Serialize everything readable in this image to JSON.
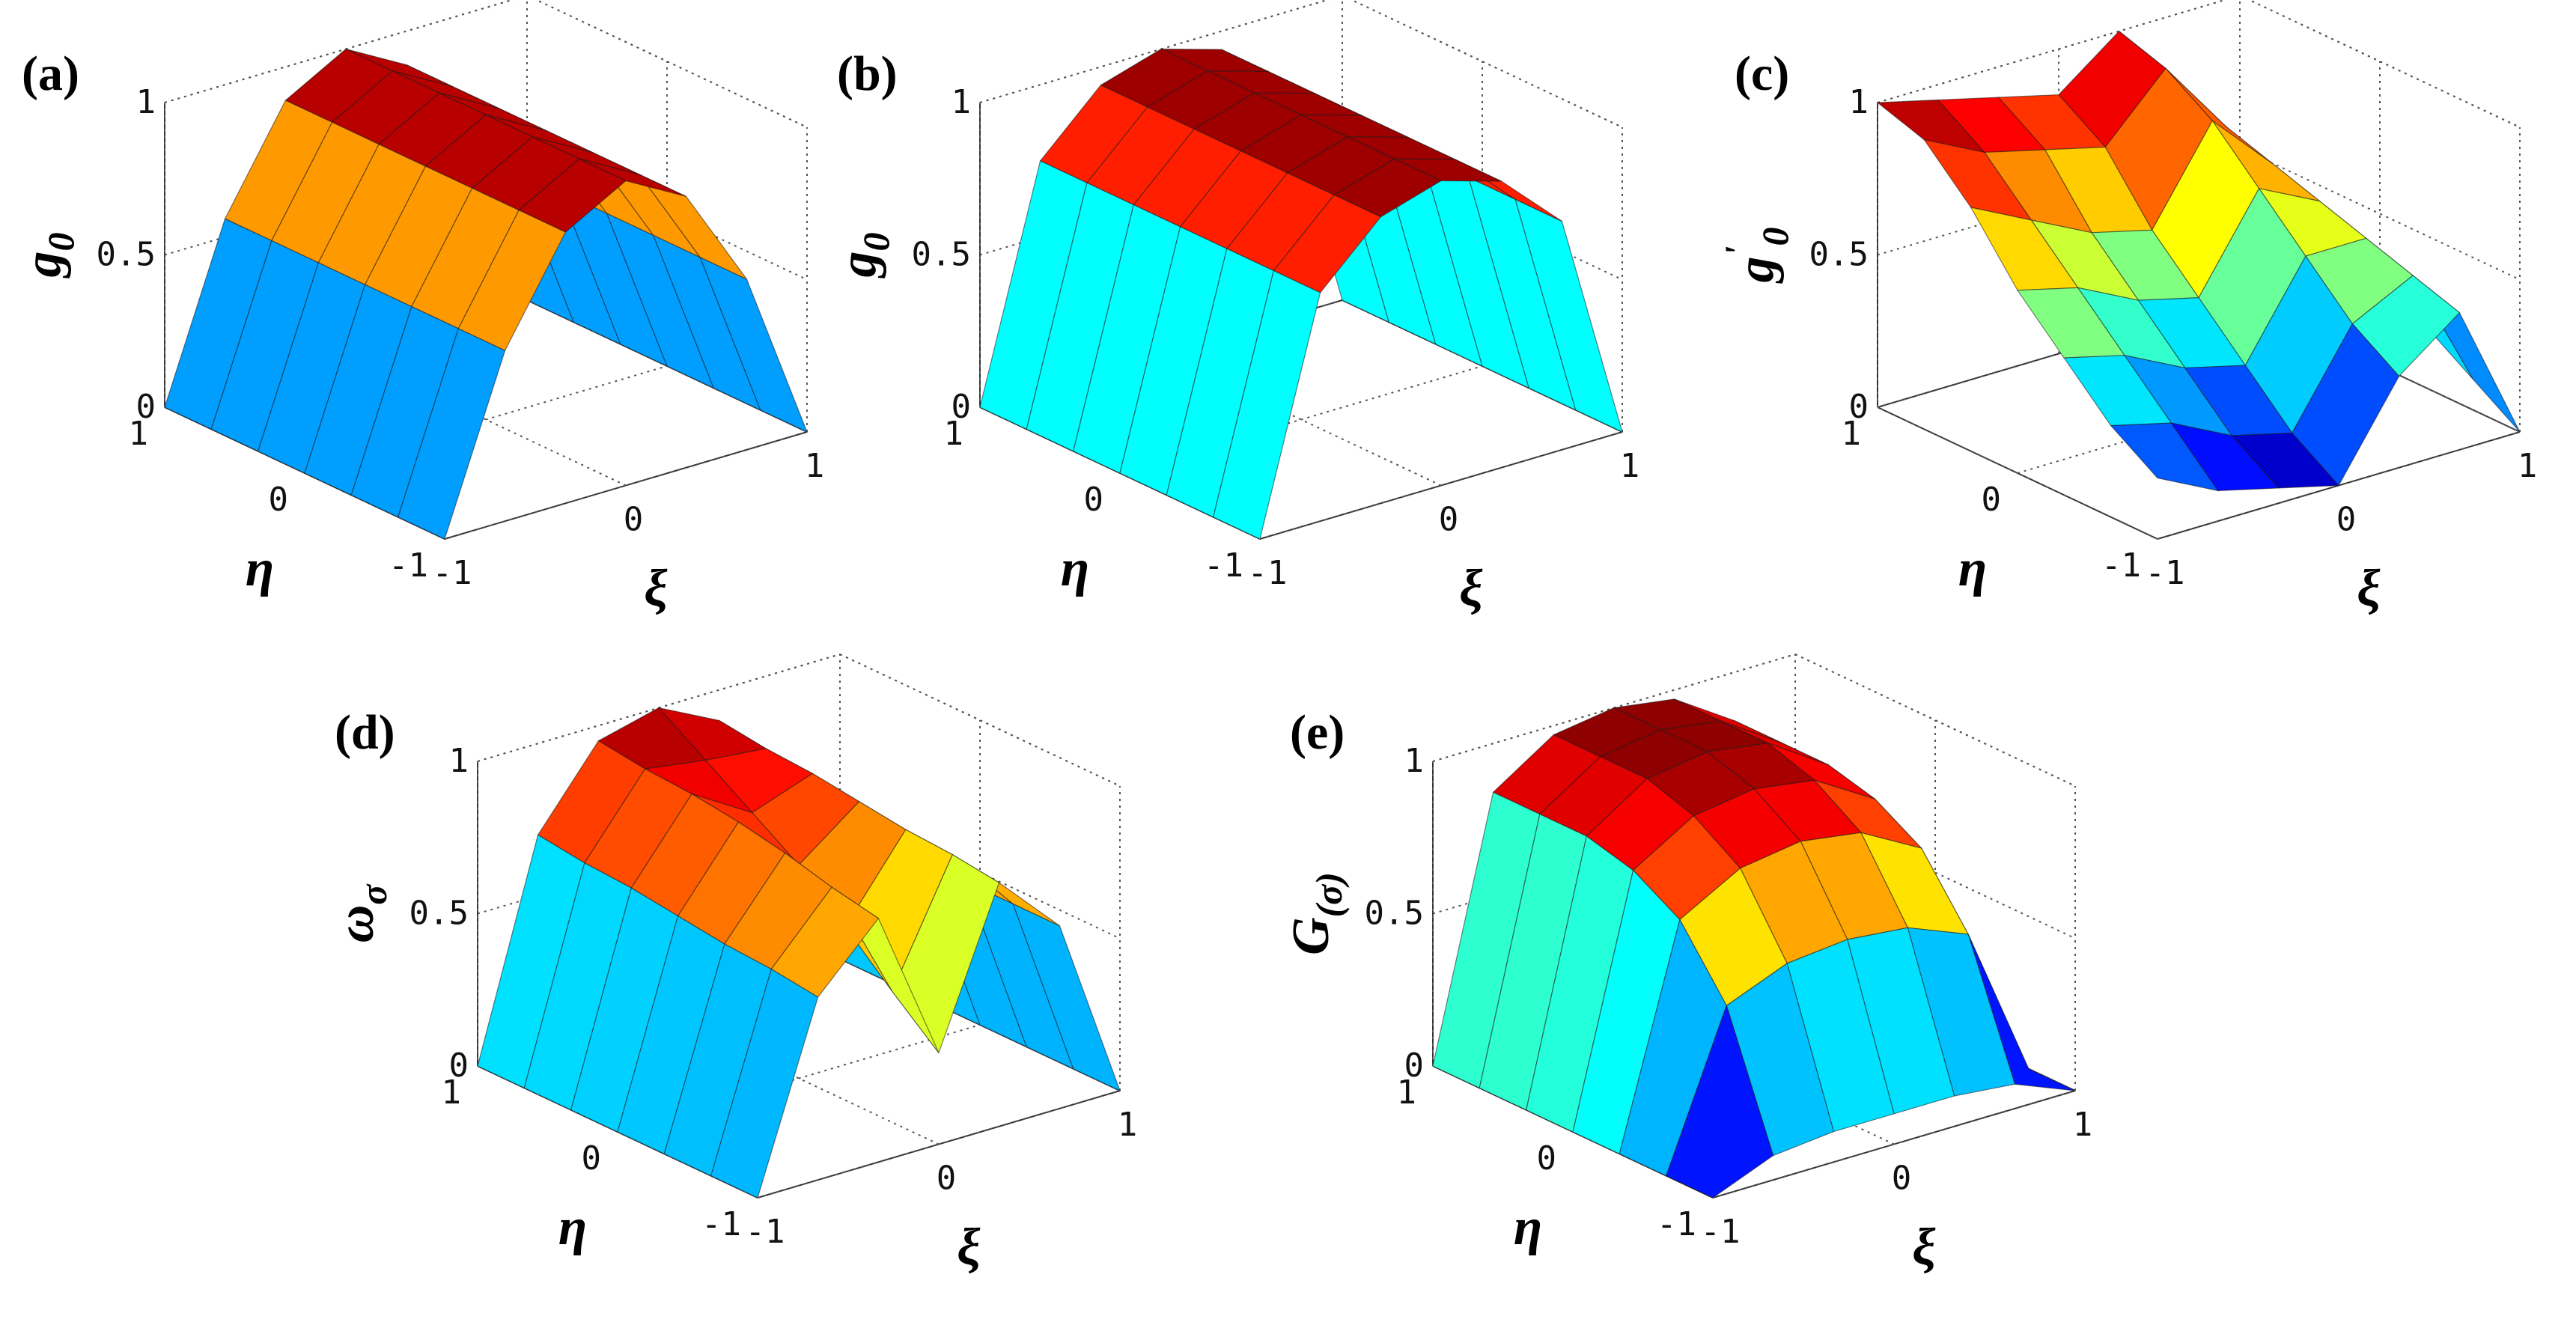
{
  "chart_data": [
    {
      "type": "surface",
      "panel": "(a)",
      "zlabel": {
        "text": "g",
        "sub": "0"
      },
      "xlabel": "ξ",
      "ylabel": "η",
      "x": [
        -1,
        -0.667,
        -0.333,
        0,
        0.333,
        0.667,
        1
      ],
      "y": [
        -1,
        -0.667,
        -0.333,
        0,
        0.333,
        0.667,
        1
      ],
      "xlim": [
        -1,
        1
      ],
      "ylim": [
        -1,
        1
      ],
      "zlim": [
        0,
        1
      ],
      "xticks": [
        -1,
        0,
        1
      ],
      "yticks": [
        -1,
        0,
        1
      ],
      "zticks": [
        0,
        0.5,
        1
      ],
      "z": [
        [
          0,
          0.56,
          0.89,
          1,
          0.89,
          0.56,
          0
        ],
        [
          0,
          0.56,
          0.89,
          1,
          0.89,
          0.56,
          0
        ],
        [
          0,
          0.56,
          0.89,
          1,
          0.89,
          0.56,
          0
        ],
        [
          0,
          0.56,
          0.89,
          1,
          0.89,
          0.56,
          0
        ],
        [
          0,
          0.56,
          0.89,
          1,
          0.89,
          0.56,
          0
        ],
        [
          0,
          0.56,
          0.89,
          1,
          0.89,
          0.56,
          0
        ],
        [
          0,
          0.56,
          0.89,
          1,
          0.89,
          0.56,
          0
        ]
      ]
    },
    {
      "type": "surface",
      "panel": "(b)",
      "zlabel": {
        "text": "g",
        "sub": "0"
      },
      "xlabel": "ξ",
      "ylabel": "η",
      "x": [
        -1,
        -0.667,
        -0.333,
        0,
        0.333,
        0.667,
        1
      ],
      "y": [
        -1,
        -0.667,
        -0.333,
        0,
        0.333,
        0.667,
        1
      ],
      "xlim": [
        -1,
        1
      ],
      "ylim": [
        -1,
        1
      ],
      "zlim": [
        0,
        1
      ],
      "xticks": [
        -1,
        0,
        1
      ],
      "yticks": [
        -1,
        0,
        1
      ],
      "zticks": [
        0,
        0.5,
        1
      ],
      "z": [
        [
          0,
          0.75,
          0.94,
          1,
          0.94,
          0.75,
          0
        ],
        [
          0,
          0.75,
          0.94,
          1,
          0.94,
          0.75,
          0
        ],
        [
          0,
          0.75,
          0.94,
          1,
          0.94,
          0.75,
          0
        ],
        [
          0,
          0.75,
          0.94,
          1,
          0.94,
          0.75,
          0
        ],
        [
          0,
          0.75,
          0.94,
          1,
          0.94,
          0.75,
          0
        ],
        [
          0,
          0.75,
          0.94,
          1,
          0.94,
          0.75,
          0
        ],
        [
          0,
          0.75,
          0.94,
          1,
          0.94,
          0.75,
          0
        ]
      ]
    },
    {
      "type": "surface",
      "panel": "(c)",
      "zlabel": {
        "text": "g",
        "sup": "'",
        "sub": "0"
      },
      "xlabel": "ξ",
      "ylabel": "η",
      "x": [
        -1,
        -0.667,
        -0.333,
        0,
        0.333,
        0.667,
        1
      ],
      "y": [
        -1,
        -0.667,
        -0.333,
        0,
        0.333,
        0.667,
        1
      ],
      "xlim": [
        -1,
        1
      ],
      "ylim": [
        -1,
        1
      ],
      "zlim": [
        0,
        1
      ],
      "xticks": [
        -1,
        0,
        1
      ],
      "yticks": [
        -1,
        0,
        1
      ],
      "zticks": [
        0,
        0.5,
        1
      ],
      "z": [
        [
          0.2,
          0.1,
          0.05,
          0,
          0.3,
          0.45,
          0
        ],
        [
          0.3,
          0.25,
          0.15,
          0.1,
          0.4,
          0.5,
          0.1
        ],
        [
          0.45,
          0.4,
          0.3,
          0.25,
          0.55,
          0.55,
          0.2
        ],
        [
          0.6,
          0.55,
          0.45,
          0.4,
          0.7,
          0.6,
          0.3
        ],
        [
          0.8,
          0.7,
          0.6,
          0.55,
          0.85,
          0.65,
          0.35
        ],
        [
          0.95,
          0.85,
          0.8,
          0.75,
          0.95,
          0.7,
          0.4
        ],
        [
          1,
          0.95,
          0.9,
          0.85,
          1,
          0.75,
          0.45
        ]
      ]
    },
    {
      "type": "surface",
      "panel": "(d)",
      "zlabel": {
        "text": "ω",
        "sub": "σ"
      },
      "xlabel": "ξ",
      "ylabel": "η",
      "x": [
        -1,
        -0.667,
        -0.333,
        0,
        0.333,
        0.667,
        1
      ],
      "y": [
        -1,
        -0.667,
        -0.333,
        0,
        0.333,
        0.667,
        1
      ],
      "xlim": [
        -1,
        1
      ],
      "ylim": [
        -1,
        1
      ],
      "zlim": [
        0,
        1
      ],
      "xticks": [
        -1,
        0,
        1
      ],
      "yticks": [
        -1,
        0,
        1
      ],
      "zticks": [
        0,
        0.5,
        1
      ],
      "z": [
        [
          0,
          0.6,
          0.8,
          0.3,
          0.8,
          0.6,
          0
        ],
        [
          0,
          0.62,
          0.83,
          0.43,
          0.82,
          0.6,
          0
        ],
        [
          0,
          0.63,
          0.87,
          0.57,
          0.83,
          0.6,
          0
        ],
        [
          0,
          0.65,
          0.9,
          0.7,
          0.85,
          0.6,
          0
        ],
        [
          0,
          0.67,
          0.92,
          0.8,
          0.87,
          0.62,
          0
        ],
        [
          0,
          0.68,
          0.93,
          0.9,
          0.88,
          0.63,
          0
        ],
        [
          0,
          0.7,
          0.95,
          1,
          0.9,
          0.65,
          0
        ]
      ]
    },
    {
      "type": "surface",
      "panel": "(e)",
      "zlabel": {
        "text": "G",
        "sub": "(σ)"
      },
      "xlabel": "ξ",
      "ylabel": "η",
      "x": [
        -1,
        -0.667,
        -0.333,
        0,
        0.333,
        0.667,
        1
      ],
      "y": [
        -1,
        -0.667,
        -0.333,
        0,
        0.333,
        0.667,
        1
      ],
      "xlim": [
        -1,
        1
      ],
      "ylim": [
        -1,
        1
      ],
      "zlim": [
        0,
        1
      ],
      "xticks": [
        -1,
        0,
        1
      ],
      "yticks": [
        -1,
        0,
        1
      ],
      "zticks": [
        0,
        0.5,
        1
      ],
      "z": [
        [
          0,
          0.08,
          0.1,
          0.1,
          0.1,
          0.08,
          0
        ],
        [
          0,
          0.5,
          0.58,
          0.6,
          0.58,
          0.5,
          0
        ],
        [
          0,
          0.71,
          0.82,
          0.85,
          0.82,
          0.71,
          0
        ],
        [
          0,
          0.8,
          0.92,
          0.95,
          0.92,
          0.8,
          0
        ],
        [
          0,
          0.84,
          0.97,
          1,
          0.97,
          0.84,
          0
        ],
        [
          0,
          0.84,
          0.97,
          1,
          0.97,
          0.84,
          0
        ],
        [
          0,
          0.84,
          0.97,
          1,
          0.97,
          0.84,
          0
        ]
      ]
    }
  ]
}
